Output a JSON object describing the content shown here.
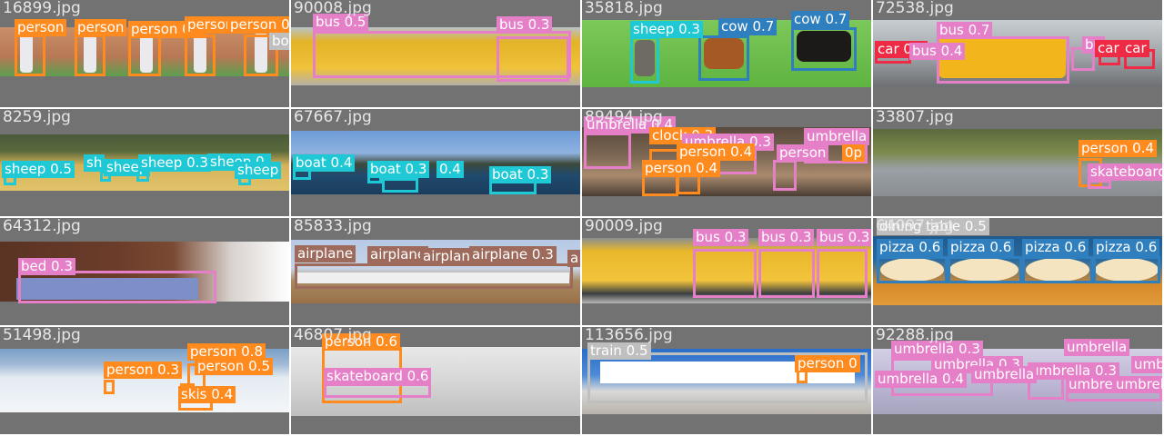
{
  "tiles": [
    {
      "file": "16899.jpg",
      "labels": [
        "person",
        "person",
        "person 0.8",
        "person 0.8",
        "person 0.8",
        "bo"
      ]
    },
    {
      "file": "90008.jpg",
      "labels": [
        "bus 0.5",
        "bus 0.3"
      ]
    },
    {
      "file": "35818.jpg",
      "labels": [
        "sheep 0.3",
        "cow 0.7",
        "cow 0.7"
      ]
    },
    {
      "file": "72538.jpg",
      "labels": [
        "car 0.3",
        "bus 0.7",
        "bus 0.4",
        "bu",
        "car",
        "car"
      ]
    },
    {
      "file": "8259.jpg",
      "labels": [
        "sheep 0.5",
        "sh",
        "sheep",
        "sheep 0.3",
        "sheep 0.",
        "sheep"
      ]
    },
    {
      "file": "67667.jpg",
      "labels": [
        "boat 0.4",
        "boat 0.3",
        "0.4",
        "boat 0.3"
      ]
    },
    {
      "file": "89494.jpg",
      "labels": [
        "umbrella 0.4",
        "clock 0.3",
        "umbrella 0.3",
        "umbrella",
        "person 0.4",
        "person 0.4",
        "person",
        "0p"
      ]
    },
    {
      "file": "33807.jpg",
      "labels": [
        "person 0.4",
        "skateboard"
      ]
    },
    {
      "file": "64312.jpg",
      "labels": [
        "bed 0.3"
      ]
    },
    {
      "file": "85833.jpg",
      "labels": [
        "airplane",
        "airplane",
        "airplane",
        "airplane 0.3",
        "a"
      ]
    },
    {
      "file": "90009.jpg",
      "labels": [
        "bus 0.3",
        "bus 0.3",
        "bus 0.3"
      ]
    },
    {
      "file": "64097.jpg",
      "labels": [
        "dining table 0.5",
        "pizza 0.6",
        "pizza 0.6",
        "pizza 0.6",
        "pizza 0.6"
      ]
    },
    {
      "file": "51498.jpg",
      "labels": [
        "person 0.8",
        "person 0.3",
        "person 0.5",
        "skis 0.4"
      ]
    },
    {
      "file": "46807.jpg",
      "labels": [
        "person 0.6",
        "skateboard 0.6"
      ]
    },
    {
      "file": "113656.jpg",
      "labels": [
        "train 0.5",
        "person 0"
      ]
    },
    {
      "file": "92288.jpg",
      "labels": [
        "umbrella 0.3",
        "umbrella",
        "umbrella 0.3",
        "umbrella 0.4",
        "umbrella 0.3",
        "umbrella",
        "umbrella",
        "umbrella",
        "umbrella"
      ]
    }
  ]
}
